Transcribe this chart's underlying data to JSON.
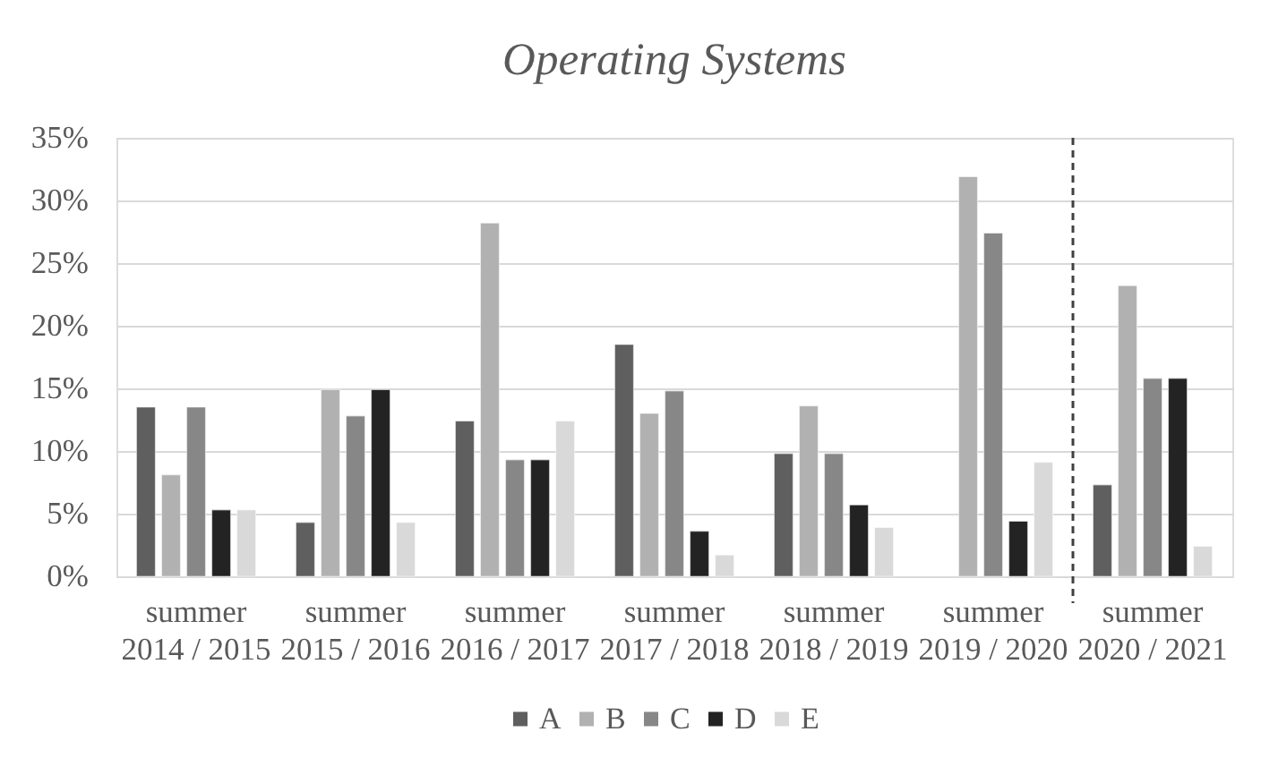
{
  "chart_data": {
    "type": "bar",
    "title": "Operating Systems",
    "categories": [
      "summer 2014 / 2015",
      "summer 2015 / 2016",
      "summer 2016 / 2017",
      "summer 2017 / 2018",
      "summer 2018 / 2019",
      "summer 2019 / 2020",
      "summer 2020 / 2021"
    ],
    "series": [
      {
        "name": "A",
        "color": "#5f5f5f",
        "values": [
          13.5,
          4.3,
          12.4,
          18.5,
          9.8,
          null,
          7.3
        ]
      },
      {
        "name": "B",
        "color": "#b1b1b1",
        "values": [
          8.1,
          14.9,
          28.2,
          13.0,
          13.6,
          31.9,
          23.2
        ]
      },
      {
        "name": "C",
        "color": "#878787",
        "values": [
          13.5,
          12.8,
          9.3,
          14.8,
          9.8,
          27.4,
          15.8
        ]
      },
      {
        "name": "D",
        "color": "#232323",
        "values": [
          5.3,
          14.9,
          9.3,
          3.6,
          5.7,
          4.4,
          15.8
        ]
      },
      {
        "name": "E",
        "color": "#d9d9d9",
        "values": [
          5.3,
          4.3,
          12.4,
          1.7,
          3.9,
          9.1,
          2.4
        ]
      }
    ],
    "ylim": [
      0,
      35
    ],
    "yticks": [
      {
        "value": 0,
        "label": "0%"
      },
      {
        "value": 5,
        "label": "5%"
      },
      {
        "value": 10,
        "label": "10%"
      },
      {
        "value": 15,
        "label": "15%"
      },
      {
        "value": 20,
        "label": "20%"
      },
      {
        "value": 25,
        "label": "25%"
      },
      {
        "value": 30,
        "label": "30%"
      },
      {
        "value": 35,
        "label": "35%"
      }
    ],
    "ref_lines": [
      {
        "axis": "x",
        "value": "summer 2020 / 2021",
        "color": "#404040",
        "line_style": "dashed"
      }
    ],
    "grid": "y",
    "legend": "bottom"
  }
}
